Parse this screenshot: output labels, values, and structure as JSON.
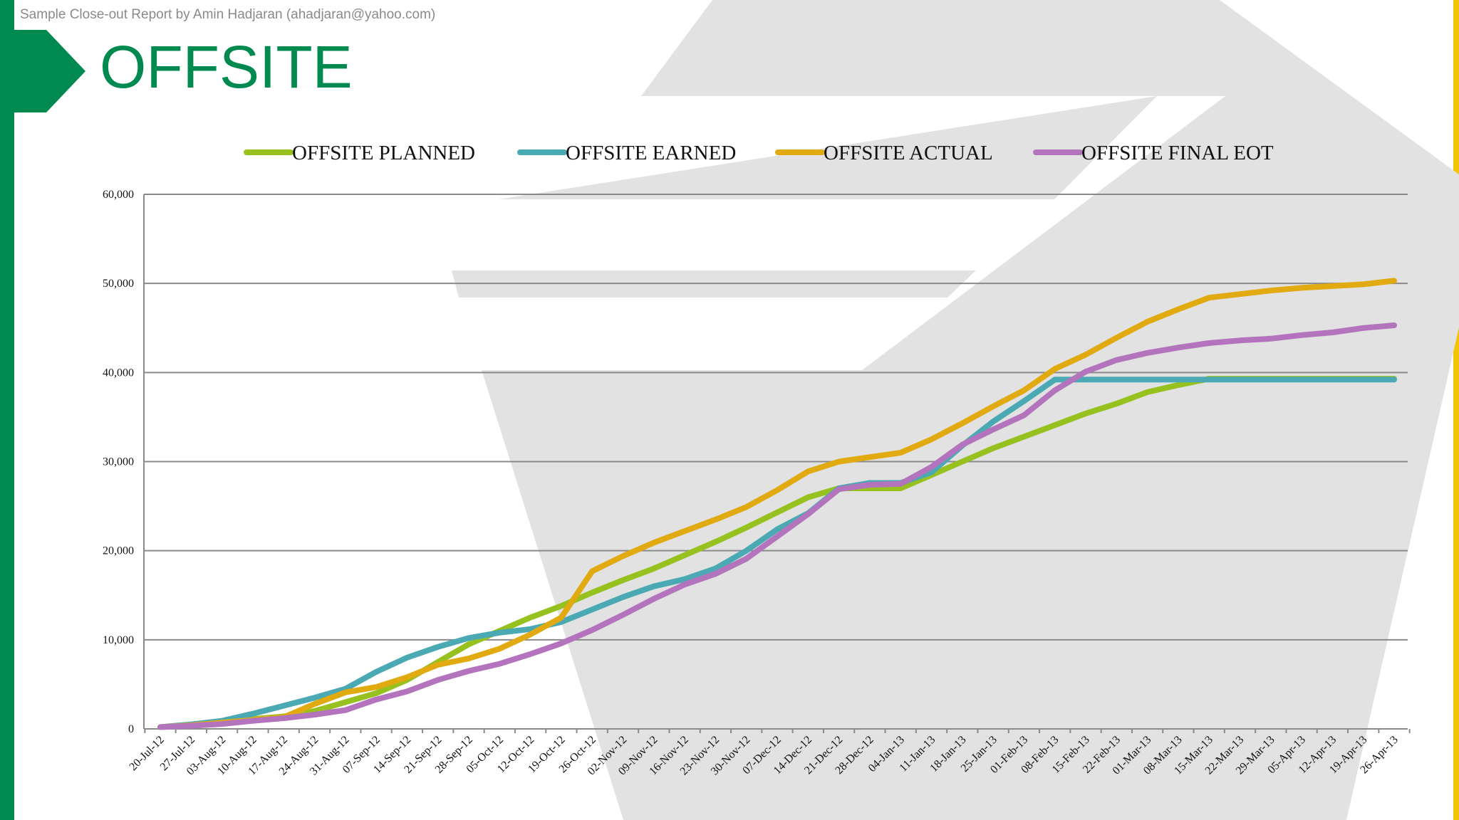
{
  "header": {
    "note": "Sample Close-out Report by Amin Hadjaran (ahadjaran@yahoo.com)"
  },
  "slide": {
    "title": "OFFSITE"
  },
  "colors": {
    "planned": "#96c11f",
    "earned": "#4aa9b3",
    "actual": "#e0aa10",
    "final_eot": "#b474bd",
    "brand": "#008a4f",
    "accent": "#f5c400"
  },
  "chart_data": {
    "type": "line",
    "title": "",
    "xlabel": "",
    "ylabel": "",
    "ylim": [
      0,
      60000
    ],
    "yticks": [
      0,
      10000,
      20000,
      30000,
      40000,
      50000,
      60000
    ],
    "ytick_labels": [
      "0",
      "10,000",
      "20,000",
      "30,000",
      "40,000",
      "50,000",
      "60,000"
    ],
    "grid": true,
    "legend_position": "top",
    "categories": [
      "20-Jul-12",
      "27-Jul-12",
      "03-Aug-12",
      "10-Aug-12",
      "17-Aug-12",
      "24-Aug-12",
      "31-Aug-12",
      "07-Sep-12",
      "14-Sep-12",
      "21-Sep-12",
      "28-Sep-12",
      "05-Oct-12",
      "12-Oct-12",
      "19-Oct-12",
      "26-Oct-12",
      "02-Nov-12",
      "09-Nov-12",
      "16-Nov-12",
      "23-Nov-12",
      "30-Nov-12",
      "07-Dec-12",
      "14-Dec-12",
      "21-Dec-12",
      "28-Dec-12",
      "04-Jan-13",
      "11-Jan-13",
      "18-Jan-13",
      "25-Jan-13",
      "01-Feb-13",
      "08-Feb-13",
      "15-Feb-13",
      "22-Feb-13",
      "01-Mar-13",
      "08-Mar-13",
      "15-Mar-13",
      "22-Mar-13",
      "29-Mar-13",
      "05-Apr-13",
      "12-Apr-13",
      "19-Apr-13",
      "26-Apr-13"
    ],
    "series": [
      {
        "name": "OFFSITE PLANNED",
        "color": "#96c11f",
        "values": [
          200,
          500,
          800,
          1100,
          1400,
          2000,
          3000,
          4000,
          5500,
          7500,
          9500,
          11000,
          12500,
          13800,
          15300,
          16700,
          18000,
          19500,
          21000,
          22600,
          24300,
          26000,
          27000,
          27000,
          27000,
          28500,
          30000,
          31500,
          32800,
          34100,
          35400,
          36500,
          37800,
          38600,
          39300,
          39300,
          39300,
          39300,
          39300,
          39300,
          39300
        ]
      },
      {
        "name": "OFFSITE EARNED",
        "color": "#4aa9b3",
        "values": [
          200,
          500,
          900,
          1700,
          2600,
          3500,
          4500,
          6400,
          8000,
          9200,
          10200,
          10800,
          11200,
          12000,
          13400,
          14800,
          16000,
          16800,
          18000,
          20000,
          22400,
          24200,
          27000,
          27600,
          27600,
          28800,
          31800,
          34500,
          36800,
          39200,
          39200,
          39200,
          39200,
          39200,
          39200,
          39200,
          39200,
          39200,
          39200,
          39200,
          39200
        ]
      },
      {
        "name": "OFFSITE ACTUAL",
        "color": "#e0aa10",
        "values": [
          200,
          400,
          700,
          1000,
          1300,
          2800,
          4100,
          4700,
          5800,
          7200,
          7900,
          9000,
          10600,
          12500,
          17700,
          19400,
          20900,
          22200,
          23500,
          24900,
          26800,
          28900,
          30000,
          30500,
          31000,
          32500,
          34300,
          36200,
          38000,
          40400,
          42000,
          43900,
          45700,
          47100,
          48400,
          48800,
          49200,
          49500,
          49700,
          49900,
          50300
        ]
      },
      {
        "name": "OFFSITE FINAL EOT",
        "color": "#b474bd",
        "values": [
          200,
          350,
          550,
          900,
          1200,
          1600,
          2100,
          3300,
          4200,
          5500,
          6500,
          7300,
          8400,
          9600,
          11100,
          12800,
          14600,
          16200,
          17400,
          19100,
          21600,
          24100,
          26900,
          27400,
          27500,
          29400,
          31900,
          33600,
          35200,
          38000,
          40100,
          41400,
          42200,
          42800,
          43300,
          43600,
          43800,
          44200,
          44500,
          45000,
          45300
        ]
      }
    ]
  }
}
